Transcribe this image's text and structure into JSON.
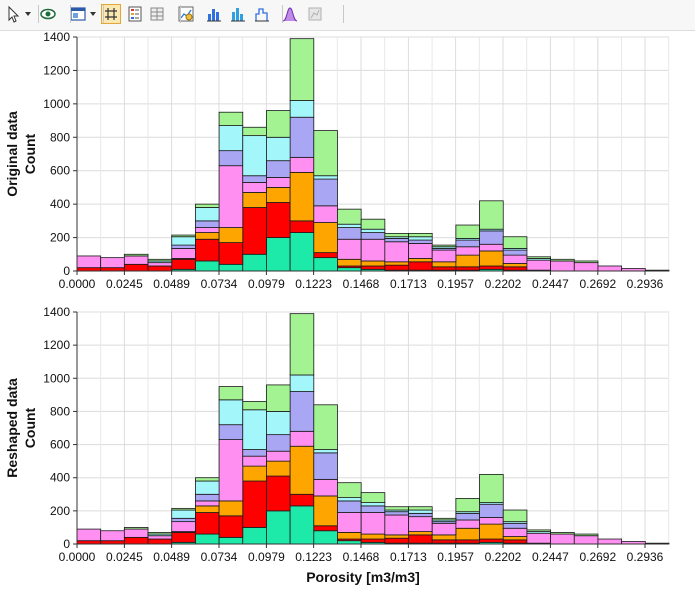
{
  "toolbar": {
    "buttons": [
      {
        "name": "pointer-select-icon",
        "active": false,
        "dropdown": true
      },
      {
        "name": "view-eye-icon",
        "active": false,
        "dropdown": false
      },
      {
        "name": "layout-window-icon",
        "active": false,
        "dropdown": true
      },
      {
        "name": "gridlines-toggle-icon",
        "active": true,
        "dropdown": false
      },
      {
        "name": "legend-toggle-icon",
        "active": false,
        "dropdown": false
      },
      {
        "name": "table-view-icon",
        "active": false,
        "dropdown": false
      },
      {
        "name": "chart-settings-icon",
        "active": false,
        "dropdown": false
      },
      {
        "name": "histogram-stacked-icon",
        "active": false,
        "dropdown": false
      },
      {
        "name": "histogram-bars-icon",
        "active": false,
        "dropdown": false
      },
      {
        "name": "histogram-outline-icon",
        "active": false,
        "dropdown": false
      },
      {
        "name": "distribution-curve-icon",
        "active": false,
        "dropdown": false
      },
      {
        "name": "disabled-tool-icon",
        "active": false,
        "dropdown": false
      }
    ]
  },
  "chart_data": [
    {
      "type": "bar",
      "stacked": true,
      "ylabel_lines": [
        "Original data",
        "Count"
      ],
      "xlabel": "",
      "ylim": [
        0,
        1400
      ],
      "yticks": [
        0,
        200,
        400,
        600,
        800,
        1000,
        1200,
        1400
      ],
      "xticks": [
        "0.0000",
        "0.0245",
        "0.0489",
        "0.0734",
        "0.0979",
        "0.1223",
        "0.1468",
        "0.1713",
        "0.1957",
        "0.2202",
        "0.2447",
        "0.2692",
        "0.2936"
      ],
      "grid": true,
      "bin_edges": [
        0,
        0.01224,
        0.02448,
        0.03672,
        0.04896,
        0.0612,
        0.07344,
        0.08568,
        0.09792,
        0.11016,
        0.1224,
        0.13464,
        0.14688,
        0.15912,
        0.17136,
        0.1836,
        0.19584,
        0.20808,
        0.22032,
        0.23256,
        0.2448,
        0.25704,
        0.26928,
        0.28152,
        0.29376,
        0.306
      ],
      "series": [
        {
          "color": "#1de9a9",
          "values": [
            0,
            0,
            0,
            0,
            10,
            60,
            40,
            100,
            200,
            230,
            80,
            20,
            10,
            5,
            5,
            5,
            5,
            10,
            5,
            5,
            0,
            0,
            0,
            0,
            0
          ]
        },
        {
          "color": "#ff0000",
          "values": [
            20,
            20,
            40,
            30,
            60,
            130,
            130,
            280,
            210,
            70,
            30,
            10,
            20,
            30,
            50,
            20,
            20,
            20,
            20,
            0,
            0,
            0,
            0,
            0,
            0
          ]
        },
        {
          "color": "#ffa500",
          "values": [
            0,
            0,
            0,
            0,
            5,
            40,
            90,
            90,
            90,
            290,
            180,
            40,
            30,
            20,
            20,
            30,
            70,
            90,
            20,
            0,
            0,
            0,
            0,
            0,
            0
          ]
        },
        {
          "color": "#ff90f2",
          "values": [
            70,
            60,
            50,
            20,
            60,
            30,
            370,
            60,
            60,
            90,
            100,
            120,
            130,
            120,
            90,
            70,
            50,
            40,
            50,
            60,
            60,
            50,
            30,
            15,
            5
          ]
        },
        {
          "color": "#a9a7f4",
          "values": [
            0,
            0,
            0,
            0,
            20,
            40,
            90,
            40,
            100,
            240,
            160,
            70,
            40,
            20,
            20,
            10,
            40,
            80,
            30,
            0,
            0,
            0,
            0,
            0,
            0
          ]
        },
        {
          "color": "#a3f7fb",
          "values": [
            0,
            0,
            0,
            10,
            50,
            80,
            150,
            240,
            140,
            100,
            20,
            20,
            20,
            10,
            20,
            10,
            10,
            10,
            10,
            10,
            0,
            0,
            0,
            0,
            0
          ]
        },
        {
          "color": "#a3f393",
          "values": [
            0,
            0,
            10,
            10,
            10,
            20,
            80,
            50,
            160,
            370,
            270,
            90,
            60,
            20,
            20,
            10,
            80,
            170,
            70,
            10,
            10,
            10,
            0,
            0,
            0
          ]
        }
      ]
    },
    {
      "type": "bar",
      "stacked": true,
      "ylabel_lines": [
        "Reshaped data",
        "Count"
      ],
      "xlabel": "Porosity [m3/m3]",
      "ylim": [
        0,
        1400
      ],
      "yticks": [
        0,
        200,
        400,
        600,
        800,
        1000,
        1200,
        1400
      ],
      "xticks": [
        "0.0000",
        "0.0245",
        "0.0489",
        "0.0734",
        "0.0979",
        "0.1223",
        "0.1468",
        "0.1713",
        "0.1957",
        "0.2202",
        "0.2447",
        "0.2692",
        "0.2936"
      ],
      "grid": true,
      "bin_edges": [
        0,
        0.01224,
        0.02448,
        0.03672,
        0.04896,
        0.0612,
        0.07344,
        0.08568,
        0.09792,
        0.11016,
        0.1224,
        0.13464,
        0.14688,
        0.15912,
        0.17136,
        0.1836,
        0.19584,
        0.20808,
        0.22032,
        0.23256,
        0.2448,
        0.25704,
        0.26928,
        0.28152,
        0.29376,
        0.306
      ],
      "series": [
        {
          "color": "#1de9a9",
          "values": [
            0,
            0,
            0,
            0,
            10,
            60,
            40,
            100,
            200,
            230,
            80,
            20,
            10,
            5,
            5,
            5,
            5,
            10,
            5,
            5,
            0,
            0,
            0,
            0,
            0
          ]
        },
        {
          "color": "#ff0000",
          "values": [
            20,
            20,
            40,
            30,
            60,
            130,
            130,
            280,
            210,
            70,
            30,
            10,
            20,
            30,
            50,
            20,
            20,
            20,
            20,
            0,
            0,
            0,
            0,
            0,
            0
          ]
        },
        {
          "color": "#ffa500",
          "values": [
            0,
            0,
            0,
            0,
            5,
            40,
            90,
            90,
            90,
            290,
            180,
            40,
            30,
            20,
            20,
            30,
            70,
            90,
            20,
            0,
            0,
            0,
            0,
            0,
            0
          ]
        },
        {
          "color": "#ff90f2",
          "values": [
            70,
            60,
            50,
            20,
            60,
            30,
            370,
            60,
            60,
            90,
            100,
            120,
            130,
            120,
            90,
            70,
            50,
            40,
            50,
            60,
            60,
            50,
            30,
            15,
            5
          ]
        },
        {
          "color": "#a9a7f4",
          "values": [
            0,
            0,
            0,
            0,
            20,
            40,
            90,
            40,
            100,
            240,
            160,
            70,
            40,
            20,
            20,
            10,
            40,
            80,
            30,
            0,
            0,
            0,
            0,
            0,
            0
          ]
        },
        {
          "color": "#a3f7fb",
          "values": [
            0,
            0,
            0,
            10,
            50,
            80,
            150,
            240,
            140,
            100,
            20,
            20,
            20,
            10,
            20,
            10,
            10,
            10,
            10,
            10,
            0,
            0,
            0,
            0,
            0
          ]
        },
        {
          "color": "#a3f393",
          "values": [
            0,
            0,
            10,
            10,
            10,
            20,
            80,
            50,
            160,
            370,
            270,
            90,
            60,
            20,
            20,
            10,
            80,
            170,
            70,
            10,
            10,
            10,
            0,
            0,
            0
          ]
        }
      ]
    }
  ]
}
